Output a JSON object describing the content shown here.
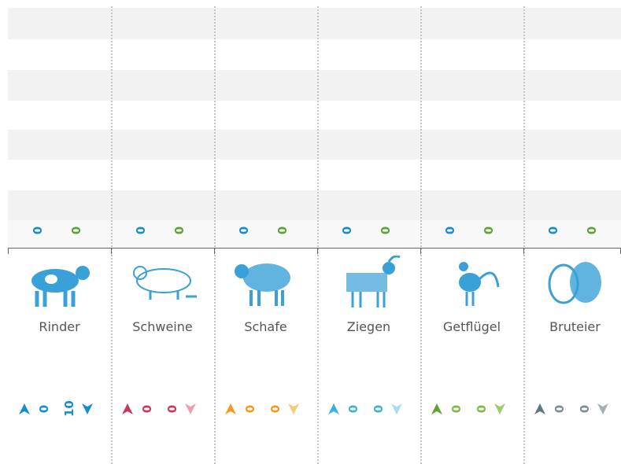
{
  "columns": [
    {
      "label": "Rinder",
      "top": [
        "0",
        "0"
      ],
      "bottom": [
        "0",
        "10"
      ],
      "up_color": "#1a8ccc",
      "oval_color": "#1a8ccc",
      "down_color": "#1a8ccc"
    },
    {
      "label": "Schweine",
      "top": [
        "0",
        "0"
      ],
      "bottom": [
        "0",
        "0"
      ],
      "up_color": "#c8385a",
      "oval_color": "#c8385a",
      "down_color": "#e8a0ae"
    },
    {
      "label": "Schafe",
      "top": [
        "0",
        "0"
      ],
      "bottom": [
        "0",
        "0"
      ],
      "up_color": "#f39a1e",
      "oval_color": "#f39a1e",
      "down_color": "#f7c97a"
    },
    {
      "label": "Ziegen",
      "top": [
        "0",
        "0"
      ],
      "bottom": [
        "0",
        "0"
      ],
      "up_color": "#3ab2d8",
      "oval_color": "#3ab2d8",
      "down_color": "#a8dcef"
    },
    {
      "label": "Getflügel",
      "top": [
        "0",
        "0"
      ],
      "bottom": [
        "0",
        "0"
      ],
      "up_color": "#5ea33a",
      "oval_color": "#7cb84a",
      "down_color": "#9ccc6e"
    },
    {
      "label": "Bruteier",
      "top": [
        "0",
        "0"
      ],
      "bottom": [
        "0",
        "0"
      ],
      "up_color": "#5e7882",
      "oval_color": "#7a8c94",
      "down_color": "#a4b0b6"
    }
  ],
  "top_colors": [
    "#1a8ccc",
    "#5ea33a"
  ]
}
